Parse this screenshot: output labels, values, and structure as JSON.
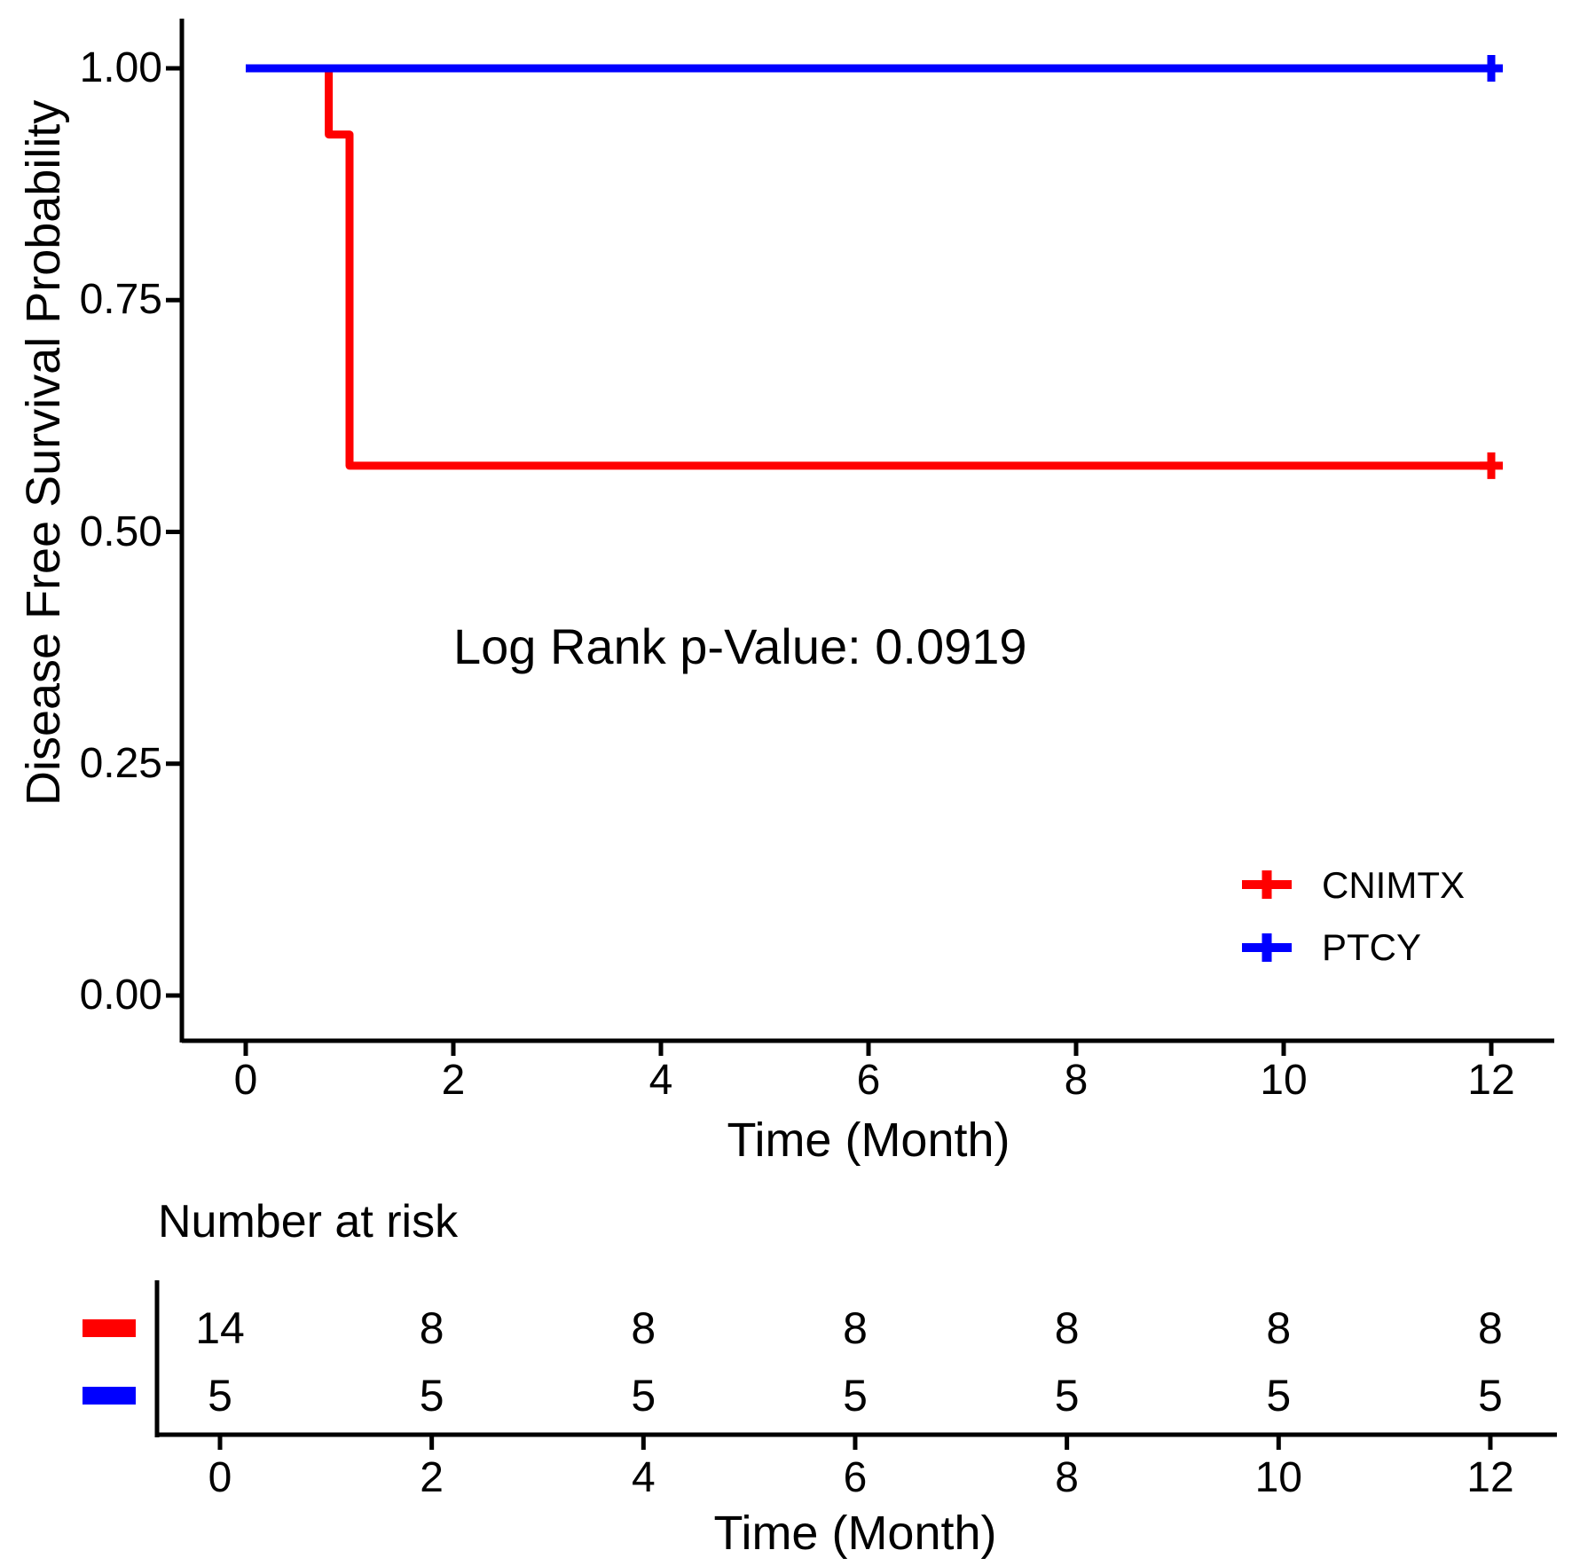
{
  "chart_data": {
    "type": "line",
    "subtype": "kaplan-meier-step-survival",
    "title": "",
    "xlabel": "Time (Month)",
    "ylabel": "Disease Free Survival Probability",
    "annotation": "Log Rank p-Value: 0.0919",
    "xlim": [
      0,
      12
    ],
    "ylim": [
      0,
      1
    ],
    "grid": false,
    "legend_position": "inside-bottom-right",
    "x_ticks": [
      0,
      2,
      4,
      6,
      8,
      10,
      12
    ],
    "y_ticks": [
      "0.00",
      "0.25",
      "0.50",
      "0.75",
      "1.00"
    ],
    "y_tick_values": [
      0,
      0.25,
      0.5,
      0.75,
      1
    ],
    "axis_color": "#000000",
    "series": [
      {
        "name": "CNIMTX",
        "color": "#FF0000",
        "steps": [
          [
            0,
            1.0
          ],
          [
            0.8,
            1.0
          ],
          [
            0.8,
            0.9286
          ],
          [
            1.0,
            0.9286
          ],
          [
            1.0,
            0.5714
          ],
          [
            12,
            0.5714
          ]
        ],
        "censors": [
          [
            12,
            0.5714
          ]
        ]
      },
      {
        "name": "PTCY",
        "color": "#0000FF",
        "steps": [
          [
            0,
            1.0
          ],
          [
            12,
            1.0
          ]
        ],
        "censors": [
          [
            12,
            1.0
          ]
        ]
      }
    ],
    "risk_table": {
      "title": "Number at risk",
      "xlabel": "Time (Month)",
      "times": [
        0,
        2,
        4,
        6,
        8,
        10,
        12
      ],
      "rows": [
        {
          "name": "CNIMTX",
          "color": "#FF0000",
          "counts": [
            14,
            8,
            8,
            8,
            8,
            8,
            8
          ]
        },
        {
          "name": "PTCY",
          "color": "#0000FF",
          "counts": [
            5,
            5,
            5,
            5,
            5,
            5,
            5
          ]
        }
      ]
    }
  }
}
